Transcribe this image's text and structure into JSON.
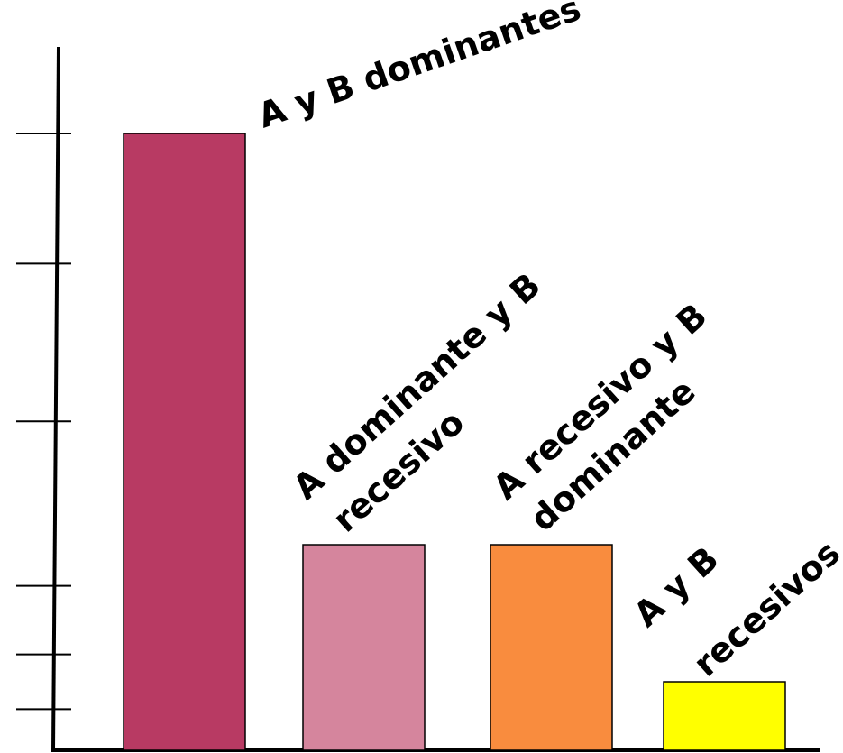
{
  "chart_data": {
    "type": "bar",
    "categories": [
      [
        "A y B dominantes"
      ],
      [
        "A dominante y B",
        "recesivo"
      ],
      [
        "A recesivo y B",
        "dominante"
      ],
      [
        "A y B",
        "recesivos"
      ]
    ],
    "values": [
      9,
      3,
      3,
      1
    ],
    "colors": [
      "#b83a63",
      "#d5859d",
      "#f98c3e",
      "#ffff00"
    ],
    "ylim": [
      0,
      9
    ],
    "yticks": [
      0.6,
      1.4,
      2.4,
      4.8,
      7.1,
      9
    ],
    "tick_labels_shown": false,
    "grid": false,
    "legend": false,
    "title": "",
    "xlabel": "",
    "ylabel": ""
  }
}
